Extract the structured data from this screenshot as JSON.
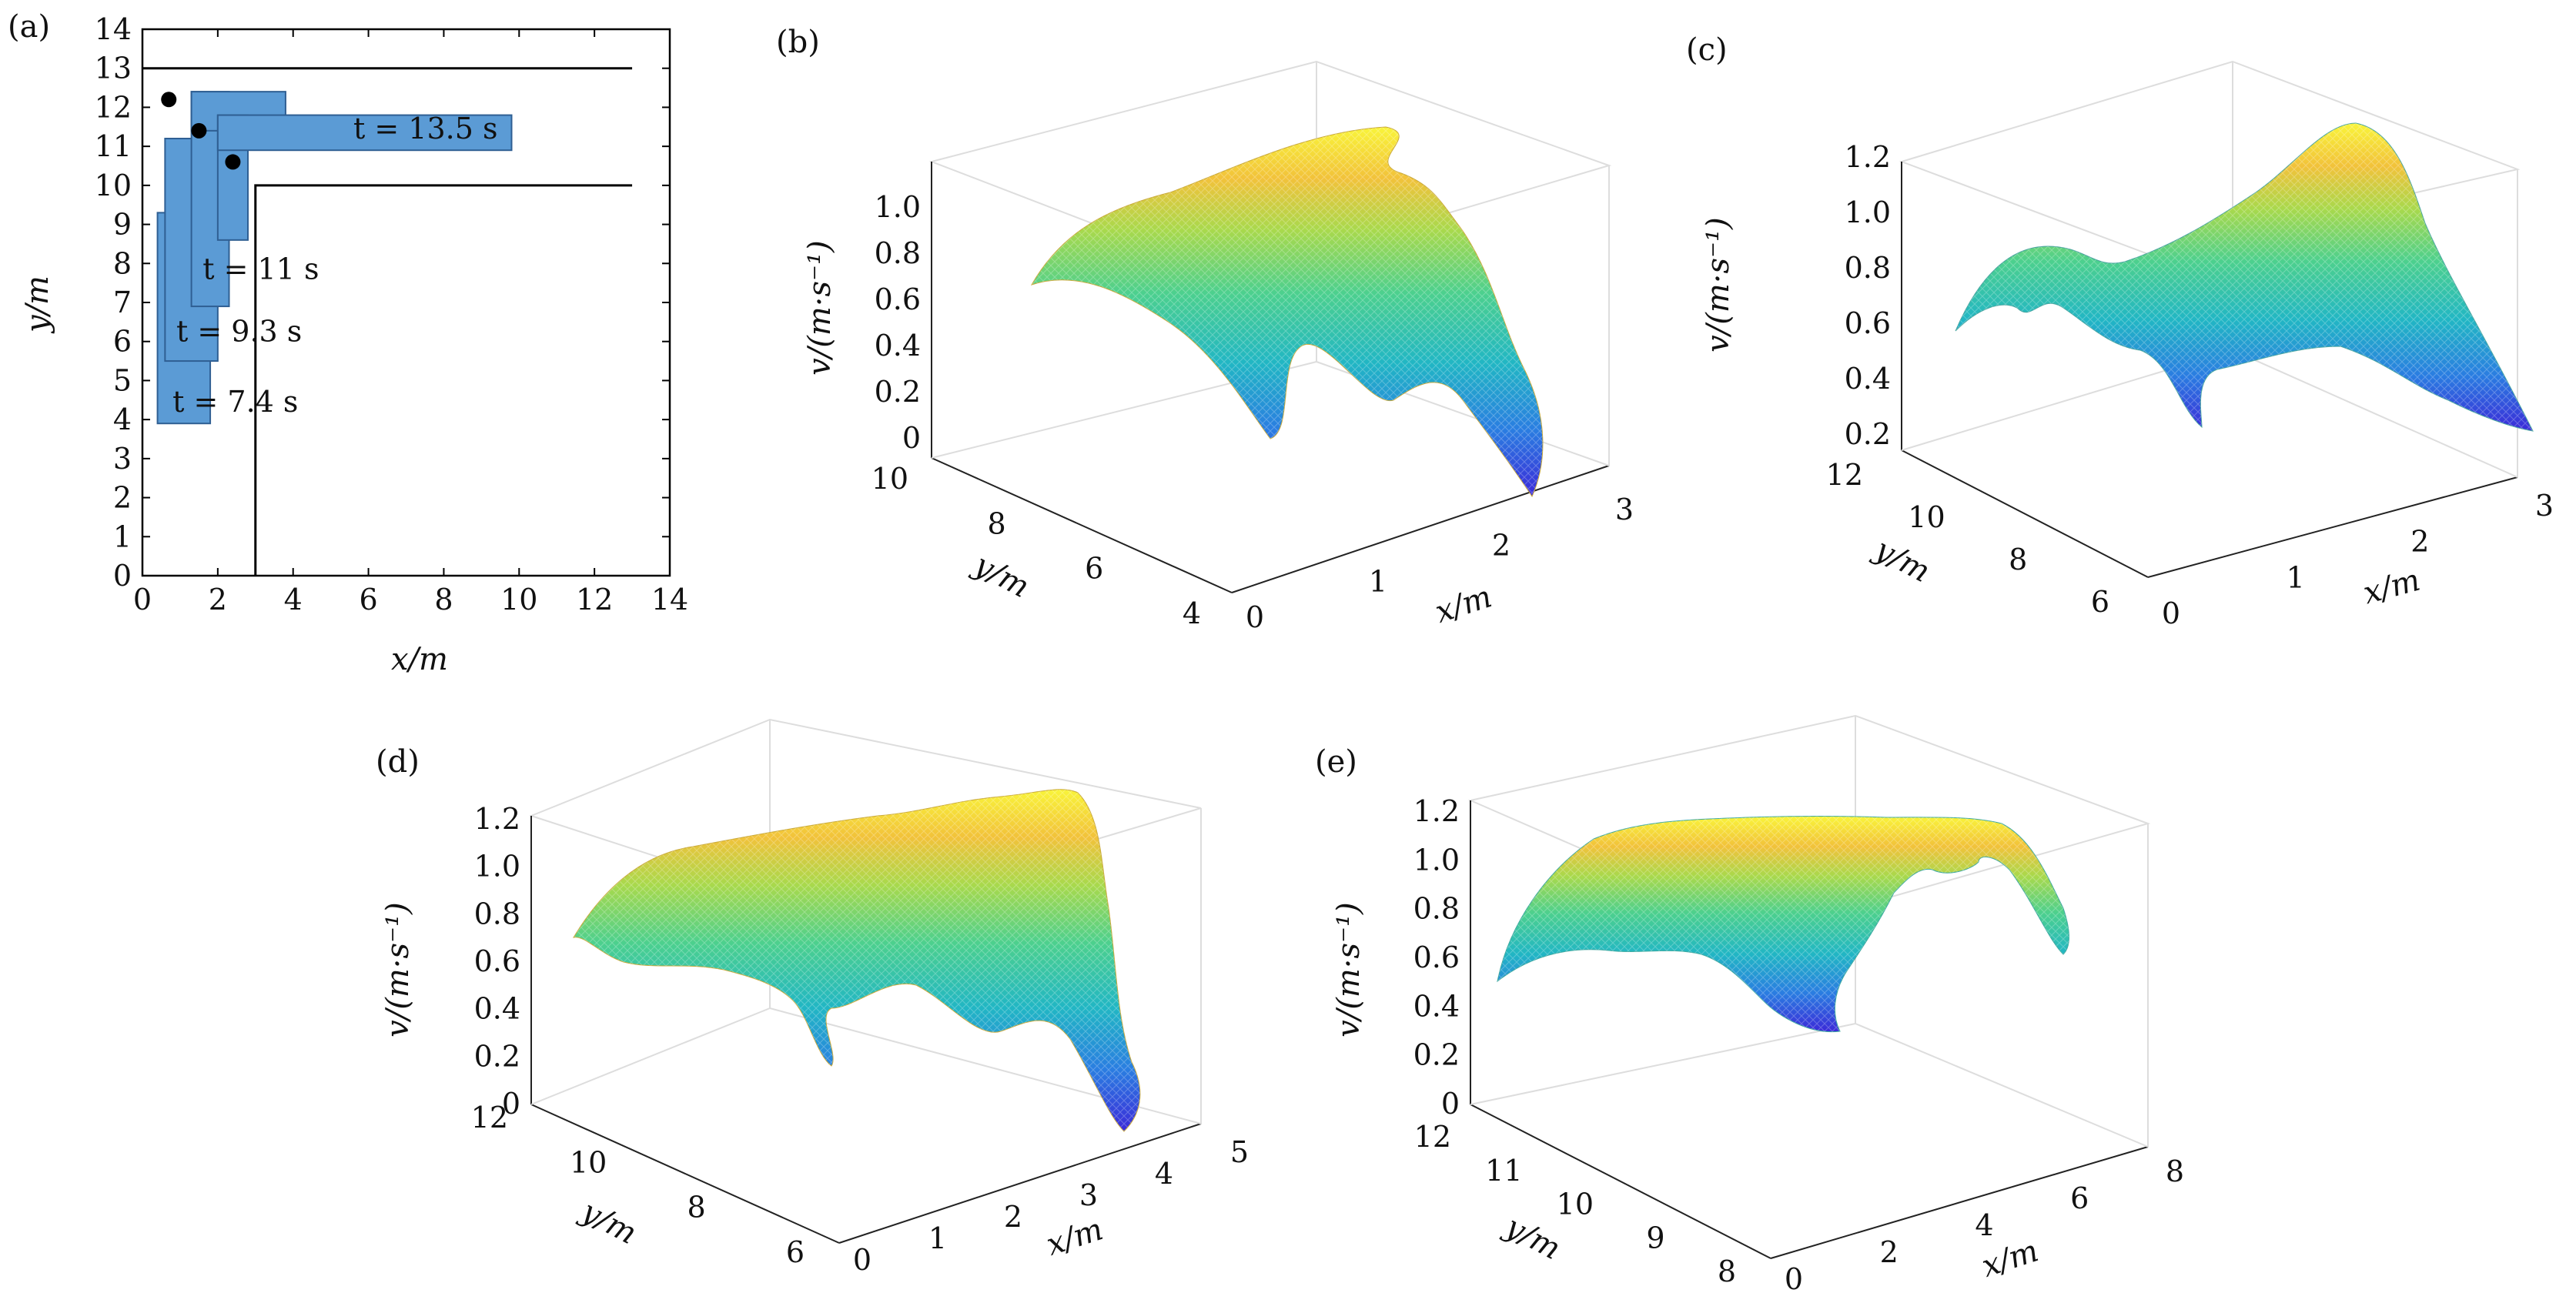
{
  "chart_data": [
    {
      "panel": "(a)",
      "type": "diagram",
      "xlabel": "x/m",
      "ylabel": "y/m",
      "xticks": [
        "0",
        "2",
        "4",
        "6",
        "8",
        "10",
        "12",
        "14"
      ],
      "yticks": [
        "0",
        "1",
        "2",
        "3",
        "4",
        "5",
        "6",
        "7",
        "8",
        "9",
        "10",
        "11",
        "12",
        "13",
        "14"
      ],
      "xlim": [
        0,
        14
      ],
      "ylim": [
        0,
        14
      ],
      "corridor": {
        "outer_wall": [
          [
            0,
            13
          ],
          [
            13,
            13
          ]
        ],
        "inner_wall": [
          [
            3,
            0
          ],
          [
            3,
            10
          ],
          [
            13,
            10
          ]
        ]
      },
      "snapshots": [
        {
          "label": "t = 7.4 s",
          "rects": [
            [
              0.4,
              3.9,
              1.8,
              9.3
            ]
          ]
        },
        {
          "label": "t = 9.3 s",
          "rects": [
            [
              0.6,
              5.5,
              2.0,
              11.2
            ]
          ]
        },
        {
          "label": "t = 11 s",
          "rects": [
            [
              1.3,
              6.9,
              2.3,
              12.4
            ]
          ]
        },
        {
          "label": "t = 13.5 s",
          "rects": [
            [
              1.3,
              11.4,
              3.8,
              12.4
            ],
            [
              2.0,
              8.6,
              2.8,
              11.8
            ],
            [
              2.0,
              10.9,
              9.8,
              11.8
            ]
          ]
        }
      ],
      "points": [
        [
          0.7,
          12.2
        ],
        [
          1.5,
          11.4
        ],
        [
          2.4,
          10.6
        ]
      ]
    },
    {
      "panel": "(b)",
      "type": "surface",
      "xlabel": "x/m",
      "ylabel": "y/m",
      "zlabel": "v/(m·s⁻¹)",
      "xticks": [
        "0",
        "1",
        "2",
        "3"
      ],
      "yticks": [
        "4",
        "6",
        "8",
        "10"
      ],
      "zticks": [
        "0",
        "0.2",
        "0.4",
        "0.6",
        "0.8",
        "1.0"
      ]
    },
    {
      "panel": "(c)",
      "type": "surface",
      "xlabel": "x/m",
      "ylabel": "y/m",
      "zlabel": "v/(m·s⁻¹)",
      "xticks": [
        "0",
        "1",
        "2",
        "3"
      ],
      "yticks": [
        "6",
        "8",
        "10",
        "12"
      ],
      "zticks": [
        "0.2",
        "0.4",
        "0.6",
        "0.8",
        "1.0",
        "1.2"
      ]
    },
    {
      "panel": "(d)",
      "type": "surface",
      "xlabel": "x/m",
      "ylabel": "y/m",
      "zlabel": "v/(m·s⁻¹)",
      "xticks": [
        "0",
        "1",
        "2",
        "3",
        "4",
        "5"
      ],
      "yticks": [
        "6",
        "8",
        "10",
        "12"
      ],
      "zticks": [
        "0",
        "0.2",
        "0.4",
        "0.6",
        "0.8",
        "1.0",
        "1.2"
      ]
    },
    {
      "panel": "(e)",
      "type": "surface",
      "xlabel": "x/m",
      "ylabel": "y/m",
      "zlabel": "v/(m·s⁻¹)",
      "xticks": [
        "0",
        "2",
        "4",
        "6",
        "8"
      ],
      "yticks": [
        "8",
        "9",
        "10",
        "11",
        "12"
      ],
      "zticks": [
        "0",
        "0.2",
        "0.4",
        "0.6",
        "0.8",
        "1.0",
        "1.2"
      ]
    }
  ],
  "colors": {
    "pedestrian_fill": "#5b9bd5",
    "pedestrian_edge": "#2f5f93",
    "point": "#000000",
    "wall": "#000000",
    "grid": "#dddddd",
    "colormap": [
      "#3b2ad8",
      "#2a7de1",
      "#21b6c4",
      "#4cd08e",
      "#a8d94c",
      "#f2c23a",
      "#f9f43a"
    ]
  }
}
